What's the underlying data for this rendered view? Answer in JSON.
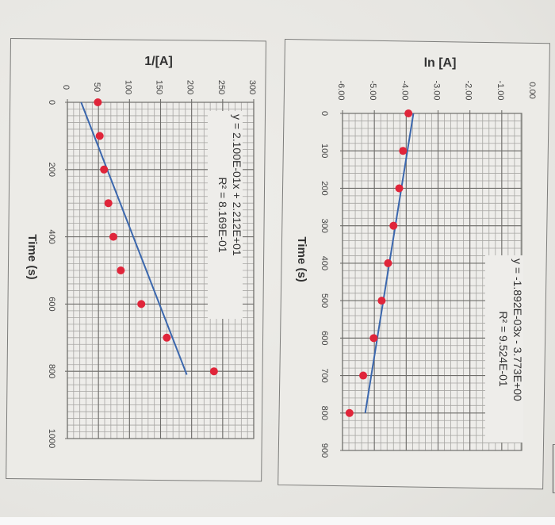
{
  "chart_data": [
    {
      "type": "scatter",
      "id": "second-order",
      "title": "1/[A]",
      "xlabel": "Time (s)",
      "ylabel": "1/[A]",
      "x_ticks": [
        0,
        200,
        400,
        600,
        800,
        1000
      ],
      "y_ticks": [
        0,
        50,
        100,
        150,
        200,
        250,
        300
      ],
      "xlim": [
        0,
        1000
      ],
      "ylim": [
        0,
        300
      ],
      "grid": true,
      "x": [
        0,
        100,
        200,
        300,
        400,
        500,
        600,
        700,
        800
      ],
      "values": [
        49,
        52,
        59,
        66,
        74,
        86,
        119,
        160,
        236
      ],
      "trendline": {
        "slope": 0.21,
        "intercept": 22.12,
        "x_range": [
          0,
          810
        ]
      },
      "annotation": {
        "equation": "y = 2.100E-01x + 2.212E+01",
        "r2": "R² = 8.169E-01"
      },
      "colors": {
        "marker": "#e0253a",
        "line": "#3b67ad"
      }
    },
    {
      "type": "scatter",
      "id": "first-order",
      "title": "ln [A]",
      "xlabel": "Time (s)",
      "ylabel": "ln [A]",
      "x_ticks": [
        0,
        100,
        200,
        300,
        400,
        500,
        600,
        700,
        800,
        900
      ],
      "y_ticks": [
        "-6.00",
        "-5.00",
        "-4.00",
        "-3.00",
        "-2.00",
        "-1.00",
        "0.00"
      ],
      "xlim": [
        0,
        900
      ],
      "ylim": [
        -6,
        0
      ],
      "grid": true,
      "x": [
        0,
        100,
        200,
        300,
        400,
        500,
        600,
        700,
        800
      ],
      "values": [
        -3.93,
        -4.1,
        -4.22,
        -4.4,
        -4.57,
        -4.77,
        -5.02,
        -5.35,
        -5.78
      ],
      "trendline": {
        "slope": -0.001892,
        "intercept": -3.773,
        "x_range": [
          0,
          800
        ]
      },
      "annotation": {
        "equation": "y = -1.892E-03x - 3.773E+00",
        "r2": "R² = 9.524E-01"
      },
      "colors": {
        "marker": "#e0253a",
        "line": "#3b67ad"
      }
    }
  ]
}
